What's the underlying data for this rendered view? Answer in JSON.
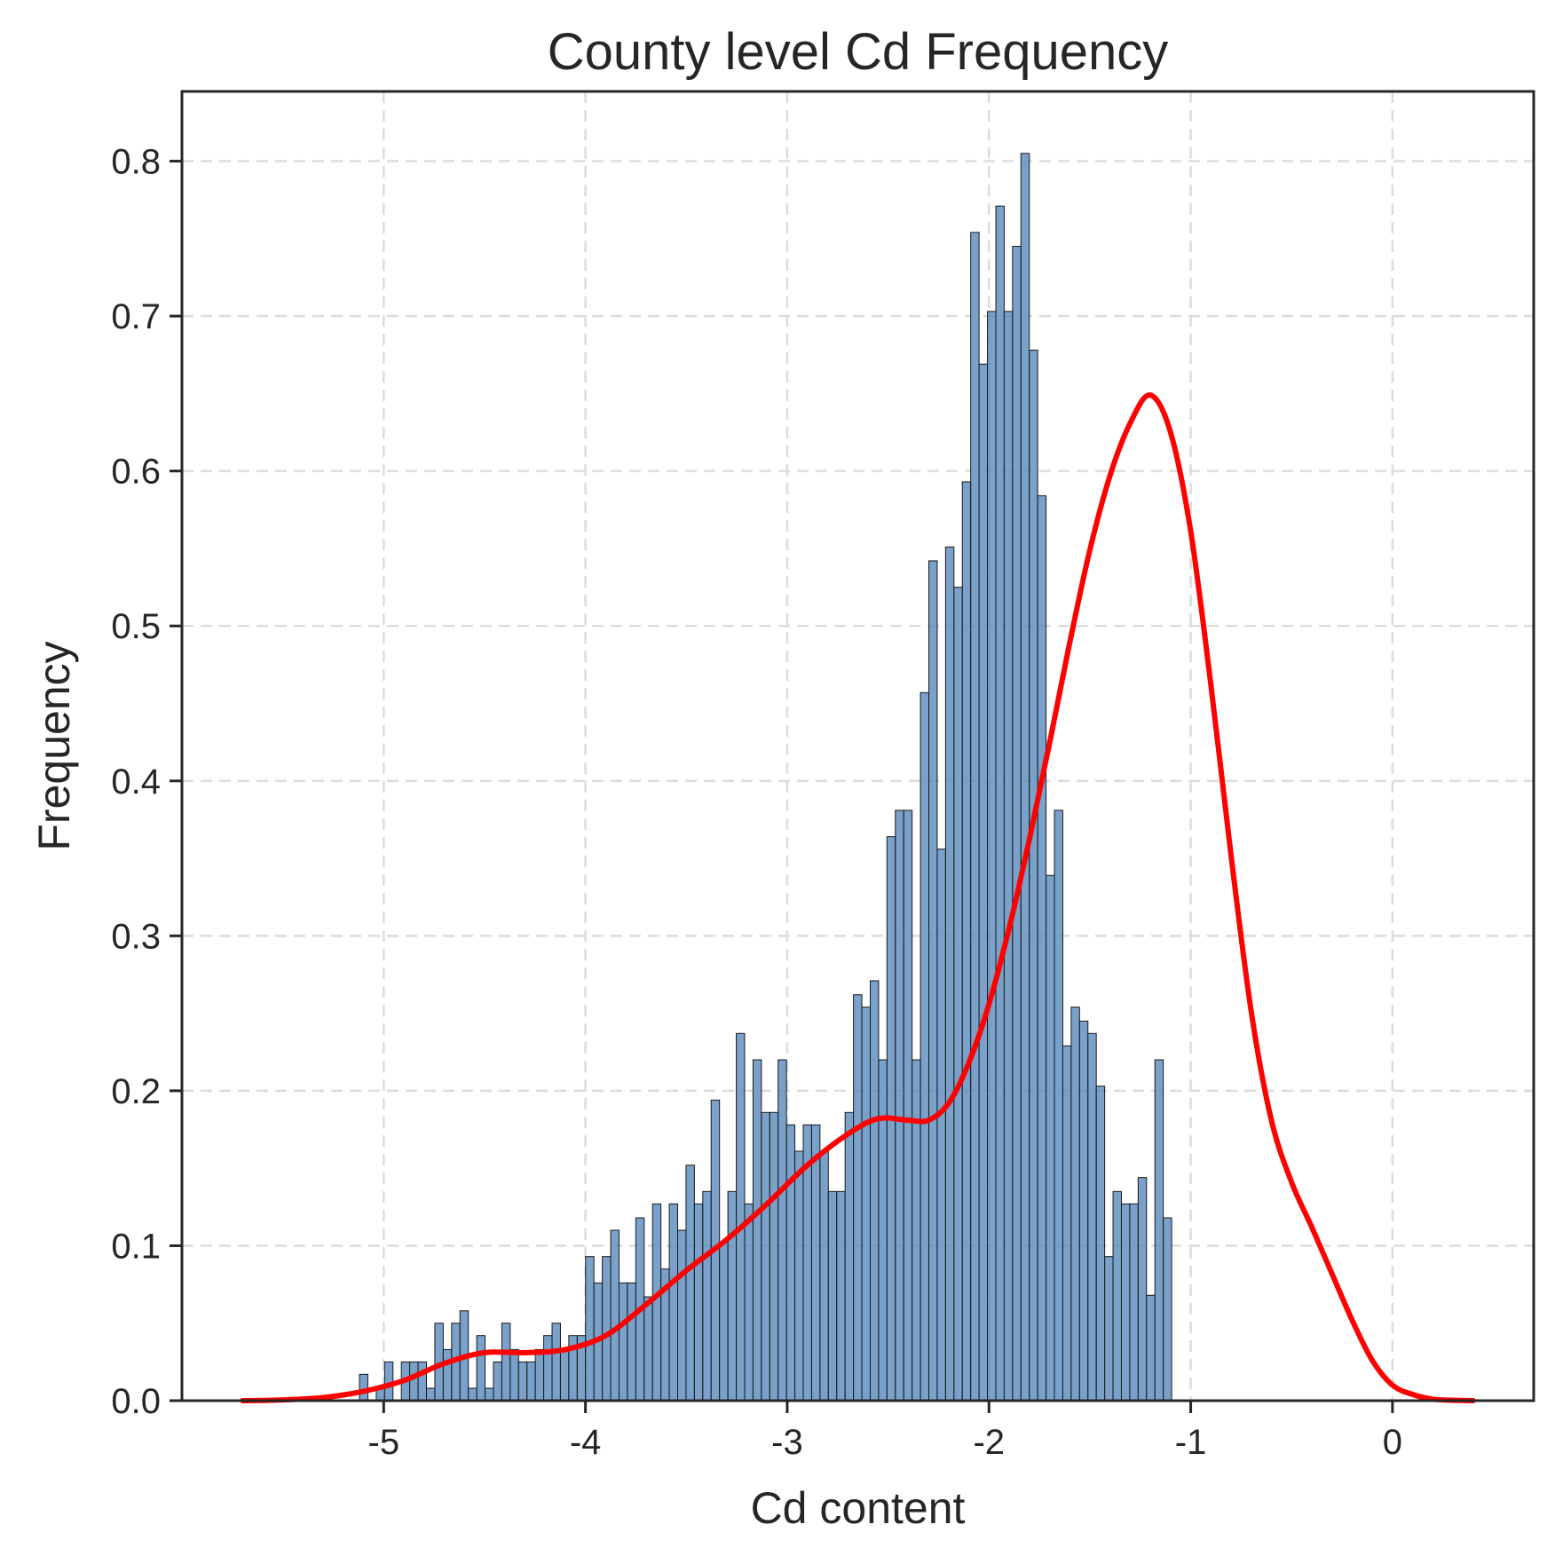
{
  "chart_data": {
    "type": "bar",
    "title": "County level Cd Frequency",
    "xlabel": "Cd content",
    "ylabel": "Frequency",
    "xlim": [
      -6.0,
      0.7
    ],
    "ylim": [
      0,
      0.845
    ],
    "xticks": [
      -5,
      -4,
      -3,
      -2,
      -1,
      0
    ],
    "xtick_labels": [
      "-5",
      "-4",
      "-3",
      "-2",
      "-1",
      "0"
    ],
    "yticks": [
      0.0,
      0.1,
      0.2,
      0.3,
      0.4,
      0.5,
      0.6,
      0.7,
      0.8
    ],
    "ytick_labels": [
      "0.0",
      "0.1",
      "0.2",
      "0.3",
      "0.4",
      "0.5",
      "0.6",
      "0.7",
      "0.8"
    ],
    "grid": true,
    "bar_color": "#5b8cbd",
    "bar_edge_color": "#1a1a1a",
    "kde_color": "#ff0000",
    "bins": {
      "start": -5.12,
      "width": 0.0415,
      "values": [
        0.017,
        0.0,
        0.008,
        0.025,
        0.0,
        0.025,
        0.025,
        0.025,
        0.008,
        0.05,
        0.033,
        0.05,
        0.058,
        0.008,
        0.042,
        0.008,
        0.025,
        0.05,
        0.033,
        0.025,
        0.025,
        0.033,
        0.042,
        0.05,
        0.033,
        0.042,
        0.042,
        0.093,
        0.076,
        0.093,
        0.11,
        0.076,
        0.076,
        0.118,
        0.067,
        0.127,
        0.085,
        0.127,
        0.11,
        0.152,
        0.127,
        0.135,
        0.194,
        0.102,
        0.135,
        0.237,
        0.127,
        0.22,
        0.186,
        0.186,
        0.22,
        0.178,
        0.161,
        0.178,
        0.178,
        0.161,
        0.135,
        0.135,
        0.186,
        0.262,
        0.254,
        0.271,
        0.22,
        0.364,
        0.381,
        0.381,
        0.22,
        0.457,
        0.542,
        0.356,
        0.551,
        0.525,
        0.593,
        0.754,
        0.669,
        0.703,
        0.771,
        0.703,
        0.745,
        0.805,
        0.678,
        0.584,
        0.339,
        0.381,
        0.229,
        0.254,
        0.245,
        0.237,
        0.203,
        0.093,
        0.135,
        0.127,
        0.127,
        0.144,
        0.068,
        0.22,
        0.118
      ]
    },
    "kde": {
      "x": [
        -5.7,
        -5.5,
        -5.3,
        -5.1,
        -4.9,
        -4.7,
        -4.5,
        -4.3,
        -4.1,
        -3.9,
        -3.7,
        -3.5,
        -3.3,
        -3.1,
        -2.9,
        -2.7,
        -2.55,
        -2.4,
        -2.3,
        -2.2,
        -2.1,
        -2.0,
        -1.9,
        -1.8,
        -1.7,
        -1.6,
        -1.5,
        -1.4,
        -1.3,
        -1.2,
        -1.1,
        -1.0,
        -0.9,
        -0.8,
        -0.7,
        -0.6,
        -0.5,
        -0.4,
        -0.3,
        -0.2,
        -0.1,
        0.0,
        0.1,
        0.2,
        0.3,
        0.4
      ],
      "y": [
        0.0,
        0.0005,
        0.002,
        0.006,
        0.013,
        0.024,
        0.031,
        0.031,
        0.033,
        0.042,
        0.062,
        0.084,
        0.104,
        0.127,
        0.152,
        0.172,
        0.182,
        0.181,
        0.181,
        0.192,
        0.218,
        0.256,
        0.305,
        0.362,
        0.424,
        0.489,
        0.549,
        0.597,
        0.631,
        0.649,
        0.625,
        0.561,
        0.462,
        0.352,
        0.251,
        0.181,
        0.141,
        0.112,
        0.082,
        0.052,
        0.026,
        0.01,
        0.004,
        0.001,
        0.0003,
        0.0
      ]
    }
  }
}
